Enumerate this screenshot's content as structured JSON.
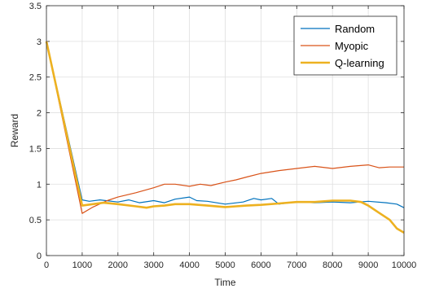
{
  "chart_data": {
    "type": "line",
    "title": "",
    "xlabel": "Time",
    "ylabel": "Reward",
    "xlim": [
      0,
      10000
    ],
    "ylim": [
      0,
      3.5
    ],
    "grid": true,
    "legend_position": "top-right",
    "x_ticks": [
      "0",
      "1000",
      "2000",
      "3000",
      "4000",
      "5000",
      "6000",
      "7000",
      "8000",
      "9000",
      "10000"
    ],
    "y_ticks": [
      "0",
      "0.5",
      "1",
      "1.5",
      "2",
      "2.5",
      "3",
      "3.5"
    ],
    "series": [
      {
        "name": "Random",
        "color": "#0072bd",
        "x": [
          0,
          1000,
          1200,
          1500,
          2000,
          2300,
          2600,
          3000,
          3300,
          3600,
          4000,
          4200,
          4500,
          5000,
          5500,
          5800,
          6000,
          6300,
          6500,
          6800,
          7000,
          7500,
          8000,
          8500,
          9000,
          9500,
          9800,
          10000
        ],
        "y": [
          3.0,
          0.78,
          0.76,
          0.78,
          0.75,
          0.78,
          0.74,
          0.77,
          0.74,
          0.79,
          0.82,
          0.77,
          0.76,
          0.72,
          0.75,
          0.8,
          0.78,
          0.8,
          0.72,
          0.74,
          0.75,
          0.74,
          0.75,
          0.74,
          0.76,
          0.74,
          0.72,
          0.67
        ]
      },
      {
        "name": "Myopic",
        "color": "#d95319",
        "x": [
          0,
          1000,
          1300,
          1700,
          2000,
          2500,
          3000,
          3300,
          3600,
          4000,
          4300,
          4600,
          5000,
          5300,
          5600,
          6000,
          6500,
          7000,
          7500,
          8000,
          8500,
          9000,
          9300,
          9600,
          10000
        ],
        "y": [
          3.0,
          0.59,
          0.68,
          0.77,
          0.82,
          0.88,
          0.95,
          1.0,
          1.0,
          0.97,
          1.0,
          0.98,
          1.03,
          1.06,
          1.1,
          1.15,
          1.19,
          1.22,
          1.25,
          1.22,
          1.25,
          1.27,
          1.23,
          1.24,
          1.24
        ]
      },
      {
        "name": "Q-learning",
        "color": "#edb120",
        "x": [
          0,
          1000,
          1300,
          1600,
          2000,
          2500,
          2800,
          3000,
          3300,
          3600,
          4000,
          4500,
          5000,
          5300,
          5600,
          6000,
          6500,
          7000,
          7500,
          8000,
          8500,
          8800,
          9000,
          9300,
          9600,
          9800,
          10000
        ],
        "y": [
          3.0,
          0.7,
          0.72,
          0.74,
          0.72,
          0.69,
          0.67,
          0.69,
          0.7,
          0.72,
          0.72,
          0.7,
          0.68,
          0.69,
          0.7,
          0.71,
          0.73,
          0.75,
          0.75,
          0.77,
          0.77,
          0.75,
          0.7,
          0.6,
          0.5,
          0.38,
          0.32
        ]
      }
    ]
  }
}
